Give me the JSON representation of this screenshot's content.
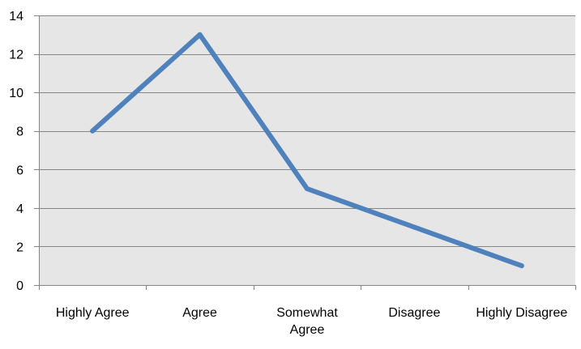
{
  "chart_data": {
    "type": "line",
    "categories": [
      "Highly Agree",
      "Agree",
      "Somewhat Agree",
      "Disagree",
      "Highly Disagree"
    ],
    "category_label_lines": [
      [
        "Highly Agree"
      ],
      [
        "Agree"
      ],
      [
        "Somewhat",
        "Agree"
      ],
      [
        "Disagree"
      ],
      [
        "Highly Disagree"
      ]
    ],
    "series": [
      {
        "values": [
          8,
          13,
          5,
          3,
          1
        ],
        "color": "#4F81BD"
      }
    ],
    "y_ticks": [
      0,
      2,
      4,
      6,
      8,
      10,
      12,
      14
    ],
    "ylim": [
      0,
      14
    ],
    "grid": true,
    "plot_background": "#E6E6E6",
    "grid_color": "#868686",
    "legend": false,
    "title": "",
    "xlabel": "",
    "ylabel": ""
  }
}
